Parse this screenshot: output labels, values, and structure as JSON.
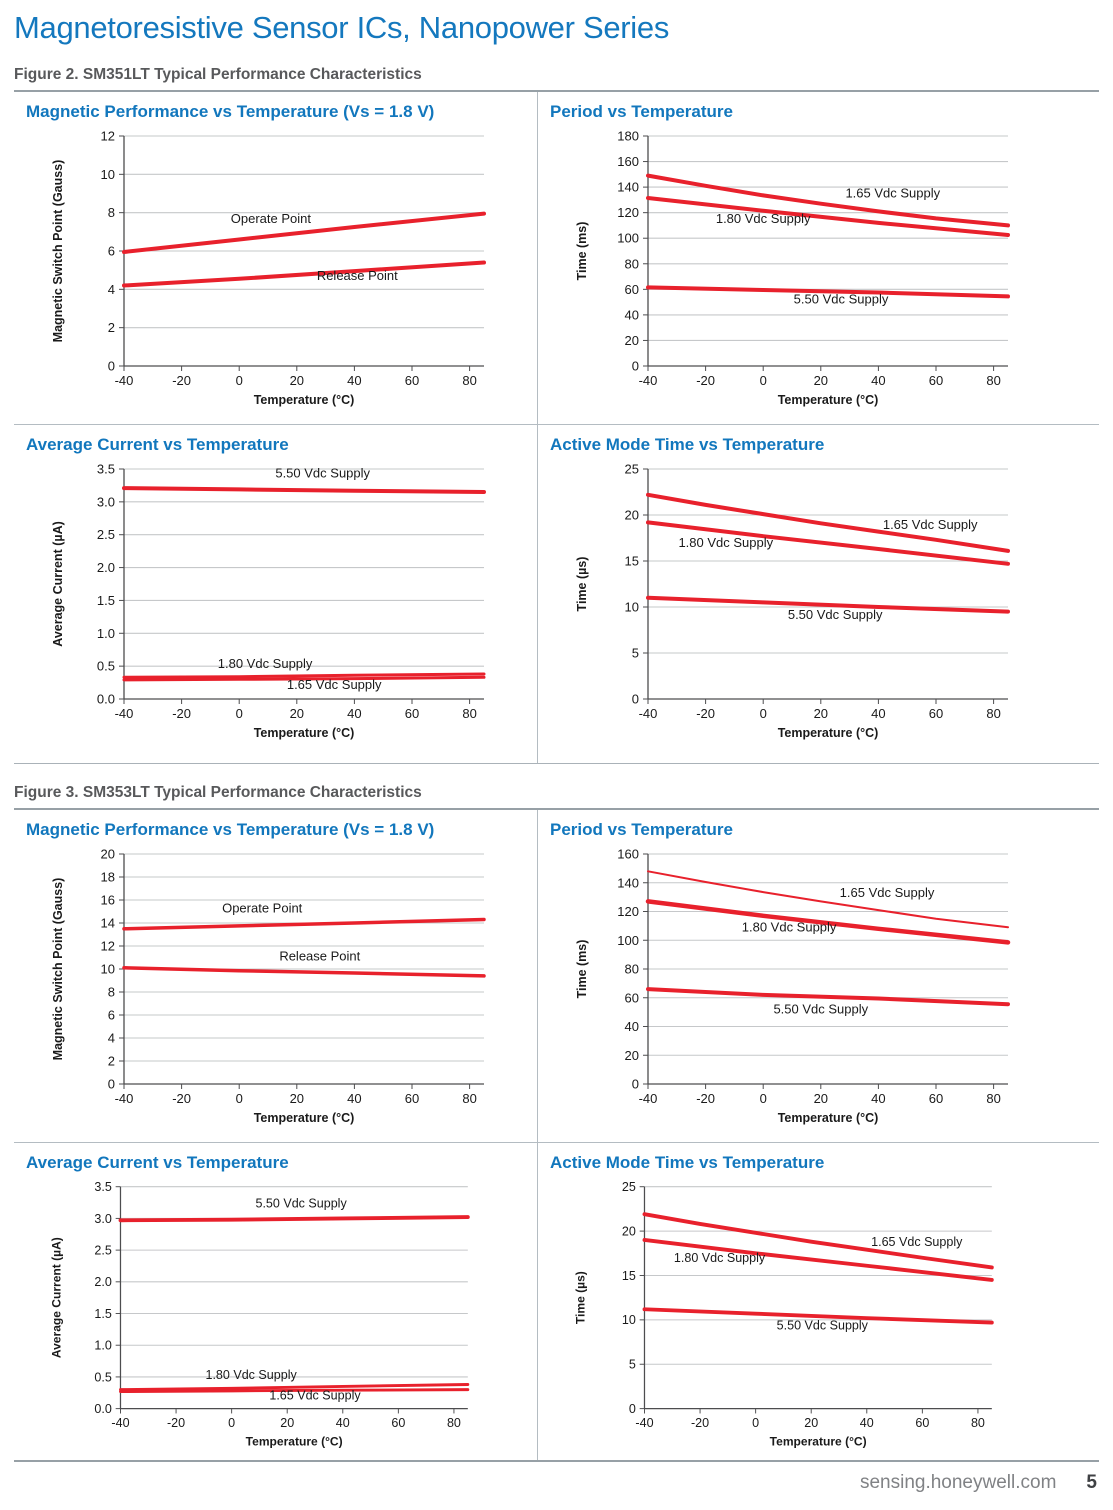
{
  "page": {
    "title": "Magnetoresistive Sensor ICs, Nanopower Series"
  },
  "footer": {
    "url": "sensing.honeywell.com",
    "page_number": "5"
  },
  "colors": {
    "title_blue": "#1478be",
    "chart_title_blue": "#1277bd",
    "caption_gray": "#58595b",
    "line_red": "#e8212c",
    "grid_gray": "#c6c8ca",
    "axis_gray": "#4d4d4f",
    "text_black": "#1a1a1a",
    "divider_gray": "#b4bcc2"
  },
  "figures": [
    {
      "caption": "Figure 2. SM351LT Typical Performance Characteristics"
    },
    {
      "caption": "Figure 3. SM353LT Typical Performance Characteristics"
    }
  ],
  "chart_data": [
    {
      "type": "line",
      "figure": "Figure 2. SM351LT Typical Performance Characteristics",
      "title": "Magnetic Performance vs Temperature (Vs = 1.8 V)",
      "xlabel": "Temperature (°C)",
      "ylabel": "Magnetic Switch Point (Gauss)",
      "xlim": [
        -40,
        85
      ],
      "ylim": [
        0,
        12
      ],
      "xticks": [
        "-40",
        "-20",
        "0",
        "20",
        "40",
        "60",
        "80"
      ],
      "yticks": [
        "0",
        "2",
        "4",
        "6",
        "8",
        "10",
        "12"
      ],
      "grid": "horizontal",
      "legend": "inline-labels",
      "series": [
        {
          "name": "Operate Point",
          "x": [
            -40,
            0,
            40,
            85
          ],
          "y": [
            5.95,
            6.6,
            7.25,
            7.95
          ],
          "width": 4,
          "label_at": [
            11,
            7.45
          ]
        },
        {
          "name": "Release Point",
          "x": [
            -40,
            0,
            40,
            85
          ],
          "y": [
            4.2,
            4.55,
            4.95,
            5.4
          ],
          "width": 4,
          "label_at": [
            41,
            4.5
          ]
        }
      ]
    },
    {
      "type": "line",
      "figure": "Figure 2. SM351LT Typical Performance Characteristics",
      "title": "Period vs Temperature",
      "xlabel": "Temperature (°C)",
      "ylabel": "Time (ms)",
      "xlim": [
        -40,
        85
      ],
      "ylim": [
        0,
        180
      ],
      "xticks": [
        "-40",
        "-20",
        "0",
        "20",
        "40",
        "60",
        "80"
      ],
      "yticks": [
        "0",
        "20",
        "40",
        "60",
        "80",
        "100",
        "120",
        "140",
        "160",
        "180"
      ],
      "grid": "horizontal",
      "legend": "inline-labels",
      "series": [
        {
          "name": "1.65 Vdc Supply",
          "x": [
            -40,
            -20,
            0,
            20,
            40,
            60,
            85
          ],
          "y": [
            149,
            141,
            133.5,
            127,
            121,
            115.5,
            110
          ],
          "width": 4,
          "label_at": [
            45,
            132
          ]
        },
        {
          "name": "1.80 Vdc Supply",
          "x": [
            -40,
            0,
            40,
            85
          ],
          "y": [
            131.5,
            121.5,
            112,
            102.5
          ],
          "width": 4,
          "label_at": [
            0,
            112
          ]
        },
        {
          "name": "5.50 Vdc Supply",
          "x": [
            -40,
            0,
            40,
            85
          ],
          "y": [
            61.5,
            59.5,
            57.5,
            54.5
          ],
          "width": 4,
          "label_at": [
            27,
            49
          ]
        }
      ]
    },
    {
      "type": "line",
      "figure": "Figure 2. SM351LT Typical Performance Characteristics",
      "title": "Average Current vs Temperature",
      "xlabel": "Temperature (°C)",
      "ylabel": "Average Current  (µA)",
      "xlim": [
        -40,
        85
      ],
      "ylim": [
        0,
        3.5
      ],
      "xticks": [
        "-40",
        "-20",
        "0",
        "20",
        "40",
        "60",
        "80"
      ],
      "yticks": [
        "0.0",
        "0.5",
        "1.0",
        "1.5",
        "2.0",
        "2.5",
        "3.0",
        "3.5"
      ],
      "grid": "horizontal",
      "legend": "inline-labels",
      "series": [
        {
          "name": "5.50 Vdc Supply",
          "x": [
            -40,
            0,
            40,
            85
          ],
          "y": [
            3.21,
            3.19,
            3.17,
            3.15
          ],
          "width": 4,
          "label_at": [
            29,
            3.37
          ]
        },
        {
          "name": "1.80 Vdc Supply",
          "x": [
            -40,
            0,
            40,
            85
          ],
          "y": [
            0.33,
            0.34,
            0.36,
            0.38
          ],
          "width": 3,
          "label_at": [
            9,
            0.47
          ]
        },
        {
          "name": "1.65 Vdc Supply",
          "x": [
            -40,
            0,
            40,
            85
          ],
          "y": [
            0.29,
            0.3,
            0.31,
            0.33
          ],
          "width": 3,
          "label_at": [
            33,
            0.15
          ]
        }
      ]
    },
    {
      "type": "line",
      "figure": "Figure 2. SM351LT Typical Performance Characteristics",
      "title": "Active Mode Time vs Temperature",
      "xlabel": "Temperature (°C)",
      "ylabel": "Time (µs)",
      "xlim": [
        -40,
        85
      ],
      "ylim": [
        0,
        25
      ],
      "xticks": [
        "-40",
        "-20",
        "0",
        "20",
        "40",
        "60",
        "80"
      ],
      "yticks": [
        "0",
        "5",
        "10",
        "15",
        "20",
        "25"
      ],
      "grid": "horizontal",
      "legend": "inline-labels",
      "series": [
        {
          "name": "1.65 Vdc Supply",
          "x": [
            -40,
            -20,
            0,
            20,
            40,
            60,
            85
          ],
          "y": [
            22.2,
            21.1,
            20.1,
            19.1,
            18.2,
            17.3,
            16.1
          ],
          "width": 4,
          "label_at": [
            58,
            18.5
          ]
        },
        {
          "name": "1.80 Vdc Supply",
          "x": [
            -40,
            0,
            40,
            85
          ],
          "y": [
            19.2,
            17.7,
            16.3,
            14.7
          ],
          "width": 4,
          "label_at": [
            -13,
            16.5
          ]
        },
        {
          "name": "5.50 Vdc Supply",
          "x": [
            -40,
            0,
            40,
            85
          ],
          "y": [
            11.0,
            10.5,
            10.0,
            9.5
          ],
          "width": 4,
          "label_at": [
            25,
            8.7
          ]
        }
      ]
    },
    {
      "type": "line",
      "figure": "Figure 3. SM353LT Typical Performance Characteristics",
      "title": "Magnetic Performance vs Temperature (Vs = 1.8 V)",
      "xlabel": "Temperature (°C)",
      "ylabel": "Magnetic Switch Point (Gauss)",
      "xlim": [
        -40,
        85
      ],
      "ylim": [
        0,
        20
      ],
      "xticks": [
        "-40",
        "-20",
        "0",
        "20",
        "40",
        "60",
        "80"
      ],
      "yticks": [
        "0",
        "2",
        "4",
        "6",
        "8",
        "10",
        "12",
        "14",
        "16",
        "18",
        "20"
      ],
      "grid": "horizontal",
      "legend": "inline-labels",
      "series": [
        {
          "name": "Operate Point",
          "x": [
            -40,
            0,
            40,
            85
          ],
          "y": [
            13.5,
            13.75,
            14.0,
            14.3
          ],
          "width": 3.5,
          "label_at": [
            8,
            14.9
          ]
        },
        {
          "name": "Release Point",
          "x": [
            -40,
            0,
            40,
            85
          ],
          "y": [
            10.1,
            9.85,
            9.65,
            9.4
          ],
          "width": 3.5,
          "label_at": [
            28,
            10.75
          ]
        }
      ]
    },
    {
      "type": "line",
      "figure": "Figure 3. SM353LT Typical Performance Characteristics",
      "title": "Period vs Temperature",
      "xlabel": "Temperature (°C)",
      "ylabel": "Time (ms)",
      "xlim": [
        -40,
        85
      ],
      "ylim": [
        0,
        160
      ],
      "xticks": [
        "-40",
        "-20",
        "0",
        "20",
        "40",
        "60",
        "80"
      ],
      "yticks": [
        "0",
        "20",
        "40",
        "60",
        "80",
        "100",
        "120",
        "140",
        "160"
      ],
      "grid": "horizontal",
      "legend": "inline-labels",
      "series": [
        {
          "name": "1.65 Vdc Supply",
          "x": [
            -40,
            -20,
            0,
            20,
            40,
            60,
            85
          ],
          "y": [
            148,
            140.5,
            133.5,
            127,
            121,
            115,
            109
          ],
          "width": 2,
          "label_at": [
            43,
            130
          ]
        },
        {
          "name": "1.80 Vdc Supply",
          "x": [
            -40,
            0,
            40,
            85
          ],
          "y": [
            127,
            117,
            108,
            98.5
          ],
          "width": 4.5,
          "label_at": [
            9,
            106
          ]
        },
        {
          "name": "5.50 Vdc Supply",
          "x": [
            -40,
            0,
            40,
            85
          ],
          "y": [
            66,
            62,
            59.5,
            55.5
          ],
          "width": 4,
          "label_at": [
            20,
            49
          ]
        }
      ]
    },
    {
      "type": "line",
      "figure": "Figure 3. SM353LT Typical Performance Characteristics",
      "title": "Average Current vs Temperature",
      "xlabel": "Temperature (°C)",
      "ylabel": "Average Current  (µA)",
      "xlim": [
        -40,
        85
      ],
      "ylim": [
        0,
        3.5
      ],
      "xticks": [
        "-40",
        "-20",
        "0",
        "20",
        "40",
        "60",
        "80"
      ],
      "yticks": [
        "0.0",
        "0.5",
        "1.0",
        "1.5",
        "2.0",
        "2.5",
        "3.0",
        "3.5"
      ],
      "grid": "horizontal",
      "legend": "inline-labels",
      "series": [
        {
          "name": "5.50 Vdc Supply",
          "x": [
            -40,
            0,
            40,
            85
          ],
          "y": [
            2.97,
            2.98,
            3.0,
            3.02
          ],
          "width": 4,
          "label_at": [
            25,
            3.17
          ]
        },
        {
          "name": "1.80 Vdc Supply",
          "x": [
            -40,
            0,
            40,
            85
          ],
          "y": [
            0.3,
            0.32,
            0.35,
            0.38
          ],
          "width": 3,
          "label_at": [
            7,
            0.47
          ]
        },
        {
          "name": "1.65 Vdc Supply",
          "x": [
            -40,
            0,
            40,
            85
          ],
          "y": [
            0.27,
            0.28,
            0.29,
            0.3
          ],
          "width": 3,
          "label_at": [
            30,
            0.14
          ]
        }
      ]
    },
    {
      "type": "line",
      "figure": "Figure 3. SM353LT Typical Performance Characteristics",
      "title": "Active Mode Time vs Temperature",
      "xlabel": "Temperature (°C)",
      "ylabel": "Time (µs)",
      "xlim": [
        -40,
        85
      ],
      "ylim": [
        0,
        25
      ],
      "xticks": [
        "-40",
        "-20",
        "0",
        "20",
        "40",
        "60",
        "80"
      ],
      "yticks": [
        "0",
        "5",
        "10",
        "15",
        "20",
        "25"
      ],
      "grid": "horizontal",
      "legend": "inline-labels",
      "series": [
        {
          "name": "1.65 Vdc Supply",
          "x": [
            -40,
            -20,
            0,
            20,
            40,
            60,
            85
          ],
          "y": [
            21.9,
            20.8,
            19.8,
            18.8,
            17.9,
            17.0,
            15.9
          ],
          "width": 4,
          "label_at": [
            58,
            18.3
          ]
        },
        {
          "name": "1.80 Vdc Supply",
          "x": [
            -40,
            0,
            40,
            85
          ],
          "y": [
            19.0,
            17.5,
            16.1,
            14.5
          ],
          "width": 4,
          "label_at": [
            -13,
            16.5
          ]
        },
        {
          "name": "5.50 Vdc Supply",
          "x": [
            -40,
            0,
            40,
            85
          ],
          "y": [
            11.2,
            10.7,
            10.2,
            9.7
          ],
          "width": 4,
          "label_at": [
            24,
            8.9
          ]
        }
      ]
    }
  ]
}
